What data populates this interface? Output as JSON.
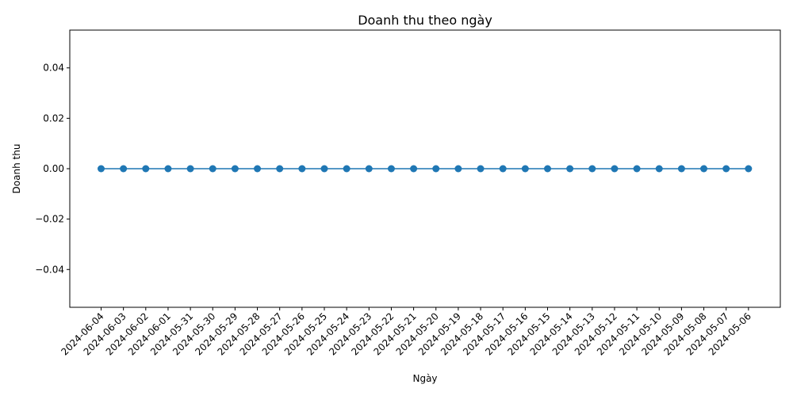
{
  "chart_data": {
    "type": "line",
    "title": "Doanh thu theo ngày",
    "xlabel": "Ngày",
    "ylabel": "Doanh thu",
    "categories": [
      "2024-06-04",
      "2024-06-03",
      "2024-06-02",
      "2024-06-01",
      "2024-05-31",
      "2024-05-30",
      "2024-05-29",
      "2024-05-28",
      "2024-05-27",
      "2024-05-26",
      "2024-05-25",
      "2024-05-24",
      "2024-05-23",
      "2024-05-22",
      "2024-05-21",
      "2024-05-20",
      "2024-05-19",
      "2024-05-18",
      "2024-05-17",
      "2024-05-16",
      "2024-05-15",
      "2024-05-14",
      "2024-05-13",
      "2024-05-12",
      "2024-05-11",
      "2024-05-10",
      "2024-05-09",
      "2024-05-08",
      "2024-05-07",
      "2024-05-06"
    ],
    "series": [
      {
        "values": [
          0,
          0,
          0,
          0,
          0,
          0,
          0,
          0,
          0,
          0,
          0,
          0,
          0,
          0,
          0,
          0,
          0,
          0,
          0,
          0,
          0,
          0,
          0,
          0,
          0,
          0,
          0,
          0,
          0,
          0
        ]
      }
    ],
    "ylim": [
      -0.055,
      0.055
    ],
    "yticks": [
      -0.04,
      -0.02,
      0.0,
      0.02,
      0.04
    ],
    "ytick_labels": [
      "−0.04",
      "−0.02",
      "0.00",
      "0.02",
      "0.04"
    ],
    "grid": false,
    "legend": "none",
    "line_color": "#1f77b4",
    "marker": "circle"
  }
}
